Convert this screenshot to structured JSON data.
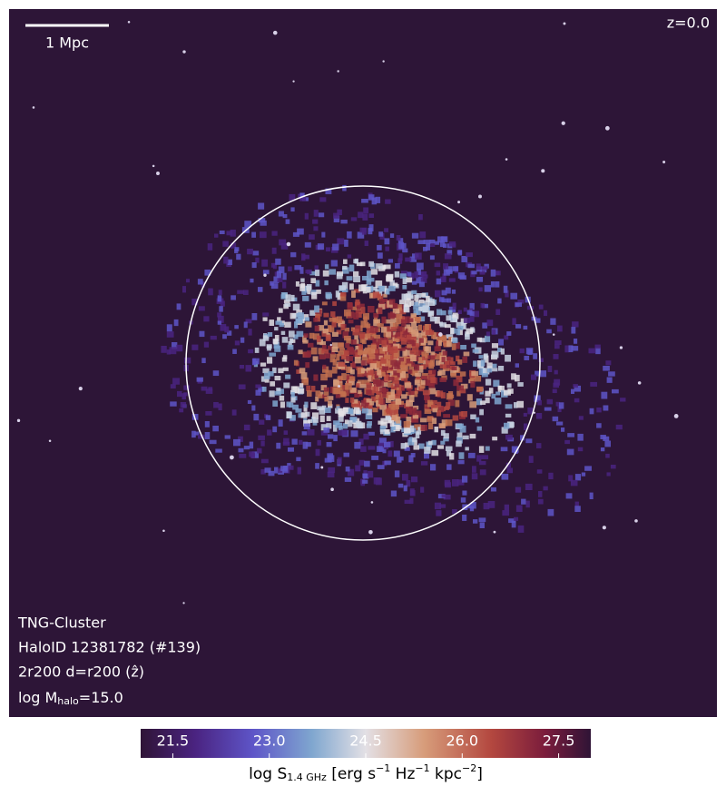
{
  "image": {
    "scale_bar": "1 Mpc",
    "redshift": "z=0.0",
    "labels": [
      "TNG-Cluster",
      "HaloID 12381782 (#139)",
      "2r200 d=r200 (ẑ)"
    ],
    "mass_label": [
      "log M",
      "halo",
      "=15.0"
    ]
  },
  "colorbar": {
    "lim": [
      21,
      28
    ],
    "ticks": [
      21.5,
      {
        "value": 23,
        "label": "23.0"
      },
      24.5,
      {
        "value": 26,
        "label": "26.0"
      },
      27.5
    ],
    "label": [
      "log S",
      "1.4 GHz",
      " [erg s",
      "−1",
      " Hz",
      "−1",
      " kpc",
      "−2",
      "]"
    ]
  }
}
